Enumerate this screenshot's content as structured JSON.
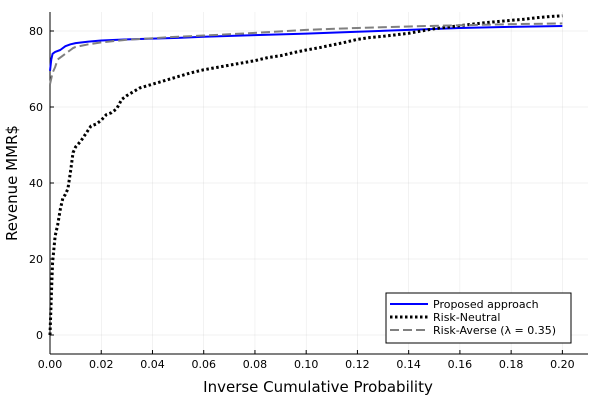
{
  "chart_data": {
    "type": "line",
    "title": "",
    "xlabel": "Inverse Cumulative Probability",
    "ylabel": "Revenue MMR$",
    "xlim": [
      0.0,
      0.21
    ],
    "ylim": [
      -5,
      85
    ],
    "xticks": [
      0.0,
      0.02,
      0.04,
      0.06,
      0.08,
      0.1,
      0.12,
      0.14,
      0.16,
      0.18,
      0.2
    ],
    "xtick_labels": [
      "0.00",
      "0.02",
      "0.04",
      "0.06",
      "0.08",
      "0.10",
      "0.12",
      "0.14",
      "0.16",
      "0.18",
      "0.20"
    ],
    "yticks": [
      0,
      20,
      40,
      60,
      80
    ],
    "ytick_labels": [
      "0",
      "20",
      "40",
      "60",
      "80"
    ],
    "grid": true,
    "legend_position": "bottom-right",
    "series": [
      {
        "name": "Proposed approach",
        "color": "#0000ff",
        "style": "solid",
        "x": [
          0.0,
          0.0005,
          0.001,
          0.002,
          0.004,
          0.006,
          0.008,
          0.01,
          0.015,
          0.02,
          0.03,
          0.04,
          0.05,
          0.06,
          0.08,
          0.1,
          0.12,
          0.14,
          0.16,
          0.18,
          0.2
        ],
        "y": [
          69.5,
          72.5,
          74.0,
          74.5,
          75.0,
          76.0,
          76.5,
          76.8,
          77.2,
          77.5,
          77.8,
          78.0,
          78.2,
          78.5,
          78.9,
          79.3,
          79.8,
          80.3,
          80.8,
          81.1,
          81.3
        ]
      },
      {
        "name": "Risk-Neutral",
        "color": "#000000",
        "style": "dotted",
        "x": [
          0.0,
          0.0005,
          0.001,
          0.002,
          0.003,
          0.004,
          0.005,
          0.006,
          0.007,
          0.008,
          0.009,
          0.01,
          0.012,
          0.014,
          0.016,
          0.018,
          0.02,
          0.022,
          0.024,
          0.026,
          0.028,
          0.03,
          0.035,
          0.04,
          0.045,
          0.05,
          0.055,
          0.06,
          0.065,
          0.07,
          0.075,
          0.08,
          0.085,
          0.09,
          0.095,
          0.1,
          0.105,
          0.11,
          0.115,
          0.12,
          0.125,
          0.13,
          0.135,
          0.14,
          0.145,
          0.15,
          0.155,
          0.16,
          0.165,
          0.17,
          0.175,
          0.18,
          0.185,
          0.19,
          0.195,
          0.2
        ],
        "y": [
          0.0,
          10.0,
          19.0,
          26.0,
          29.0,
          33.0,
          36.0,
          37.0,
          38.5,
          43.0,
          48.0,
          49.5,
          51.0,
          53.0,
          55.0,
          55.5,
          56.5,
          58.0,
          58.5,
          59.5,
          62.0,
          63.0,
          65.0,
          66.0,
          67.0,
          68.0,
          69.0,
          69.8,
          70.4,
          71.0,
          71.6,
          72.2,
          73.0,
          73.5,
          74.3,
          75.0,
          75.6,
          76.3,
          77.0,
          77.8,
          78.3,
          78.6,
          79.0,
          79.4,
          80.0,
          80.6,
          81.0,
          81.4,
          81.8,
          82.2,
          82.5,
          82.8,
          83.1,
          83.5,
          83.8,
          84.0
        ]
      },
      {
        "name": "Risk-Averse (λ = 0.35)",
        "color": "#808080",
        "style": "dashed",
        "x": [
          0.0,
          0.0005,
          0.001,
          0.002,
          0.003,
          0.004,
          0.005,
          0.006,
          0.007,
          0.008,
          0.009,
          0.01,
          0.015,
          0.02,
          0.03,
          0.04,
          0.05,
          0.06,
          0.08,
          0.1,
          0.12,
          0.14,
          0.16,
          0.18,
          0.2
        ],
        "y": [
          66.0,
          67.5,
          69.0,
          70.5,
          72.5,
          73.0,
          73.5,
          74.0,
          74.5,
          75.0,
          75.5,
          75.8,
          76.5,
          77.0,
          77.7,
          78.1,
          78.5,
          78.8,
          79.5,
          80.3,
          80.8,
          81.2,
          81.5,
          81.8,
          82.0
        ]
      }
    ]
  }
}
